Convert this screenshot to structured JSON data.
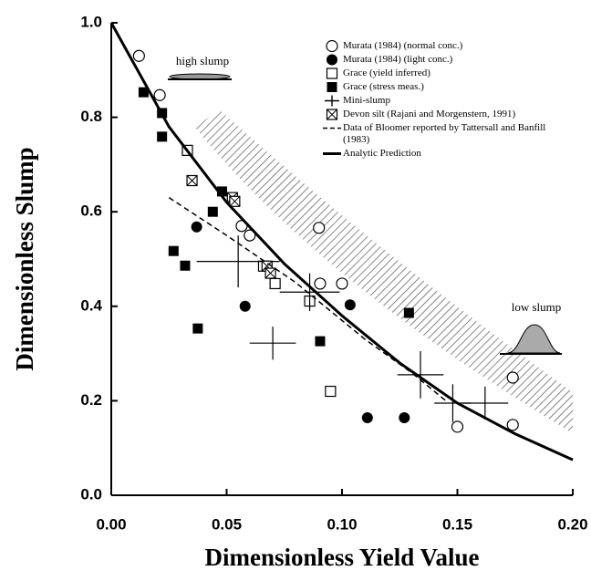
{
  "chart_data": {
    "type": "scatter",
    "xlabel": "Dimensionless Yield Value",
    "ylabel": "Dimensionless Slump",
    "xlim": [
      0,
      0.2
    ],
    "ylim": [
      0,
      1.0
    ],
    "xticks": [
      {
        "value": 0,
        "label": "0.00"
      },
      {
        "value": 0.05,
        "label": "0.05"
      },
      {
        "value": 0.1,
        "label": "0.10"
      },
      {
        "value": 0.15,
        "label": "0.15"
      },
      {
        "value": 0.2,
        "label": "0.20"
      }
    ],
    "yticks": [
      {
        "value": 0,
        "label": "0.0"
      },
      {
        "value": 0.2,
        "label": "0.2"
      },
      {
        "value": 0.4,
        "label": "0.4"
      },
      {
        "value": 0.6,
        "label": "0.6"
      },
      {
        "value": 0.8,
        "label": "0.8"
      },
      {
        "value": 1.0,
        "label": "1.0"
      }
    ],
    "annotations": [
      "high slump",
      "low slump"
    ],
    "series": [
      {
        "name": "Murata (1984) (normal conc.)",
        "marker": "circle-open",
        "color": "#000000",
        "x": [
          0.012,
          0.021,
          0.0565,
          0.06,
          0.09,
          0.0905,
          0.1,
          0.15,
          0.174,
          0.174
        ],
        "y": [
          0.93,
          0.847,
          0.57,
          0.55,
          0.566,
          0.448,
          0.448,
          0.145,
          0.149,
          0.249
        ]
      },
      {
        "name": "Murata (1984) (light conc.)",
        "marker": "circle-filled",
        "color": "#000000",
        "x": [
          0.037,
          0.058,
          0.1035,
          0.111,
          0.127
        ],
        "y": [
          0.568,
          0.4,
          0.403,
          0.164,
          0.164
        ]
      },
      {
        "name": "Grace (yield inferred)",
        "marker": "square-open",
        "color": "#000000",
        "x": [
          0.033,
          0.066,
          0.071,
          0.086,
          0.095
        ],
        "y": [
          0.73,
          0.485,
          0.448,
          0.411,
          0.22
        ]
      },
      {
        "name": "Grace (stress meas.)",
        "marker": "square-filled",
        "color": "#000000",
        "x": [
          0.014,
          0.022,
          0.022,
          0.048,
          0.044,
          0.027,
          0.032,
          0.0375,
          0.0905,
          0.129
        ],
        "y": [
          0.853,
          0.809,
          0.759,
          0.643,
          0.6,
          0.517,
          0.486,
          0.353,
          0.326,
          0.386
        ]
      },
      {
        "name": "Mini-slump",
        "marker": "cross",
        "color": "#000000",
        "x": [
          0.055,
          0.07,
          0.086,
          0.134,
          0.148,
          0.162
        ],
        "y": [
          0.495,
          0.322,
          0.43,
          0.255,
          0.195,
          0.195
        ],
        "xerr": [
          0.018,
          0.01,
          0.013,
          0.01,
          0.008,
          0.01
        ],
        "yerr": [
          0.055,
          0.035,
          0.04,
          0.05,
          0.04,
          0.035
        ]
      },
      {
        "name": "Devon silt (Rajani and Morgenstern, 1991)",
        "marker": "square-x",
        "color": "#000000",
        "x": [
          0.035,
          0.0525,
          0.0535,
          0.0675,
          0.069
        ],
        "y": [
          0.666,
          0.63,
          0.622,
          0.485,
          0.47
        ]
      },
      {
        "name": "Data of Bloomer reported by Tattersall and Banfill (1983)",
        "marker": "dashed-line",
        "color": "#000000",
        "x": [
          0.025,
          0.05,
          0.08,
          0.11,
          0.13,
          0.145
        ],
        "y": [
          0.63,
          0.55,
          0.45,
          0.33,
          0.26,
          0.2
        ]
      },
      {
        "name": "Analytic Prediction",
        "marker": "solid-line",
        "color": "#000000",
        "x": [
          0,
          0.025,
          0.05,
          0.075,
          0.1,
          0.125,
          0.15,
          0.175,
          0.2
        ],
        "y": [
          1.0,
          0.78,
          0.62,
          0.49,
          0.38,
          0.28,
          0.195,
          0.13,
          0.075
        ]
      }
    ]
  }
}
